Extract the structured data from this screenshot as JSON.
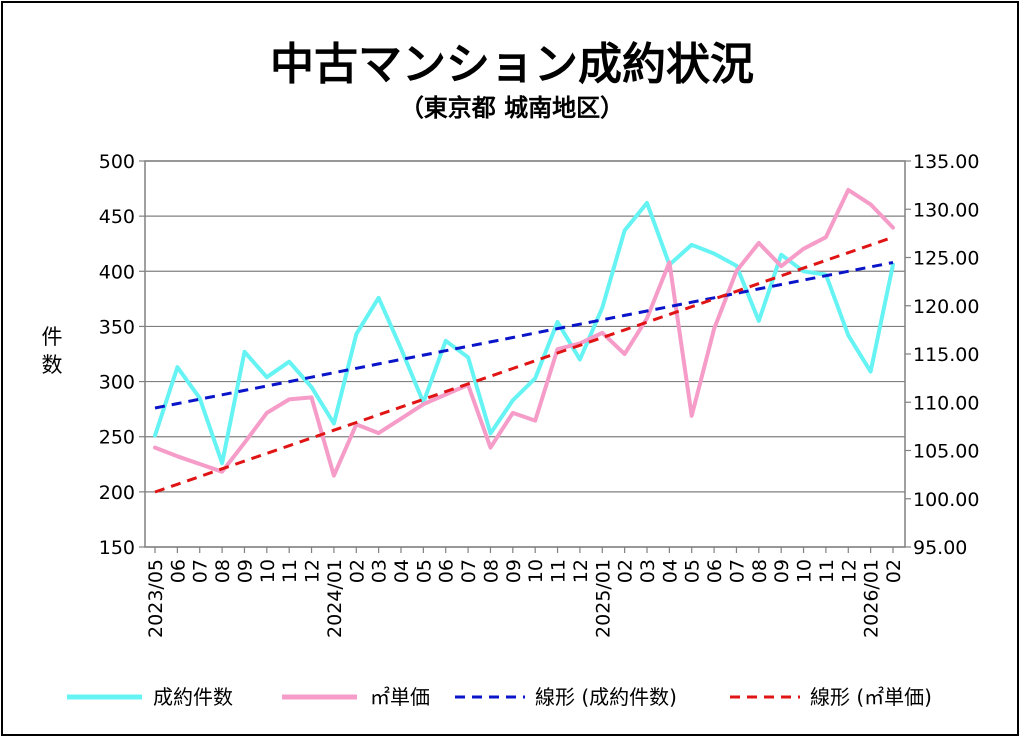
{
  "title": "中古マンション成約状況",
  "subtitle": "（東京都 城南地区）",
  "colors": {
    "count": "#66F3F3",
    "price": "#F59CC8",
    "trend_count": "#0A14C8",
    "trend_price": "#E01414",
    "grid": "#808080"
  },
  "chart_data": {
    "type": "line",
    "title": "中古マンション成約状況",
    "subtitle": "（東京都 城南地区）",
    "xlabel": "",
    "ylabel": "件数",
    "y2label": "",
    "ylim": [
      150,
      500
    ],
    "y2lim": [
      95,
      135
    ],
    "yticks": [
      "150",
      "200",
      "250",
      "300",
      "350",
      "400",
      "450",
      "500"
    ],
    "y2ticks": [
      "95.00",
      "100.00",
      "105.00",
      "110.00",
      "115.00",
      "120.00",
      "125.00",
      "130.00",
      "135.00"
    ],
    "categories": [
      "2023/05",
      "06",
      "07",
      "08",
      "09",
      "10",
      "11",
      "12",
      "2024/01",
      "02",
      "03",
      "04",
      "05",
      "06",
      "07",
      "08",
      "09",
      "10",
      "11",
      "12",
      "2025/01",
      "02",
      "03",
      "04",
      "05",
      "06",
      "07",
      "08",
      "09",
      "10",
      "11",
      "12",
      "2026/01",
      "02"
    ],
    "grid": true,
    "legend_position": "bottom",
    "series": [
      {
        "name": "成約件数",
        "axis": "left",
        "style": "solid",
        "values": [
          251,
          313,
          285,
          226,
          327,
          304,
          318,
          295,
          262,
          343,
          376,
          330,
          281,
          337,
          322,
          253,
          283,
          303,
          354,
          320,
          367,
          437,
          462,
          406,
          424,
          416,
          405,
          355,
          415,
          400,
          397,
          342,
          309,
          406
        ]
      },
      {
        "name": "㎡単価",
        "axis": "right",
        "style": "solid",
        "values": [
          105.3,
          104.4,
          103.6,
          102.8,
          105.8,
          108.9,
          110.3,
          110.5,
          102.4,
          107.7,
          106.8,
          108.3,
          109.8,
          110.8,
          111.8,
          105.3,
          108.9,
          108.1,
          115.5,
          116.1,
          117.2,
          115.0,
          118.7,
          124.5,
          108.6,
          117.6,
          123.6,
          126.5,
          124.1,
          125.9,
          127.1,
          132.0,
          130.5,
          128.1
        ]
      },
      {
        "name": "線形 (成約件数)",
        "axis": "left",
        "style": "dashed",
        "values": [
          276,
          280,
          284,
          288,
          292,
          296,
          300,
          304,
          308,
          312,
          316,
          320,
          324,
          328,
          332,
          336,
          340,
          344,
          348,
          352,
          356,
          360,
          364,
          368,
          372,
          376,
          380,
          384,
          388,
          392,
          396,
          400,
          404,
          408
        ]
      },
      {
        "name": "線形 (㎡単価)",
        "axis": "right",
        "style": "dashed",
        "values": [
          100.7,
          101.5,
          102.3,
          103.1,
          103.9,
          104.7,
          105.5,
          106.3,
          107.1,
          107.9,
          108.7,
          109.5,
          110.3,
          111.1,
          111.9,
          112.7,
          113.5,
          114.3,
          115.1,
          115.9,
          116.7,
          117.5,
          118.3,
          119.1,
          119.9,
          120.7,
          121.5,
          122.3,
          123.1,
          123.9,
          124.7,
          125.5,
          126.3,
          127.1
        ]
      }
    ]
  }
}
